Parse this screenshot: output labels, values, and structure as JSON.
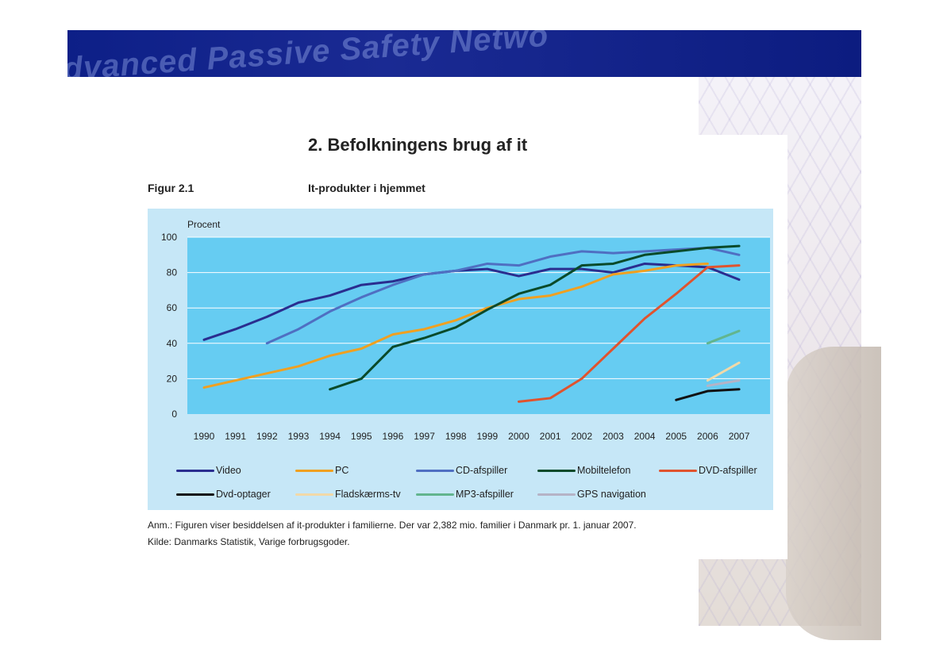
{
  "banner": {
    "watermark": "dvanced Passive Safety Netwo"
  },
  "page": {
    "heading": "2. Befolkningens brug af it",
    "figure_label": "Figur 2.1",
    "figure_title": "It-produkter i hjemmet",
    "note": "Anm.: Figuren viser besiddelsen af it-produkter i familierne. Der var 2,382 mio. familier i Danmark pr. 1. januar 2007.",
    "source": "Kilde: Danmarks Statistik, Varige forbrugsgoder."
  },
  "chart_data": {
    "type": "line",
    "title": "It-produkter i hjemmet",
    "ylabel": "Procent",
    "xlabel": "",
    "ylim": [
      0,
      100
    ],
    "yticks": [
      0,
      20,
      40,
      60,
      80,
      100
    ],
    "grid": true,
    "legend_position": "bottom",
    "x": [
      "1990",
      "1991",
      "1992",
      "1993",
      "1994",
      "1995",
      "1996",
      "1997",
      "1998",
      "1999",
      "2000",
      "2001",
      "2002",
      "2003",
      "2004",
      "2005",
      "2006",
      "2007"
    ],
    "series": [
      {
        "name": "Video",
        "color": "#2a2d8f",
        "values": [
          42,
          48,
          55,
          63,
          67,
          73,
          75,
          79,
          81,
          82,
          78,
          82,
          82,
          80,
          85,
          84,
          83,
          76
        ]
      },
      {
        "name": "PC",
        "color": "#f0a020",
        "values": [
          15,
          19,
          23,
          27,
          33,
          37,
          45,
          48,
          53,
          60,
          65,
          67,
          72,
          79,
          81,
          84,
          85,
          null
        ]
      },
      {
        "name": "CD-afspiller",
        "color": "#4f6fc2",
        "values": [
          null,
          null,
          40,
          48,
          58,
          66,
          73,
          79,
          81,
          85,
          84,
          89,
          92,
          91,
          92,
          93,
          94,
          90
        ]
      },
      {
        "name": "Mobiltelefon",
        "color": "#0a4a2a",
        "values": [
          null,
          null,
          null,
          null,
          14,
          20,
          38,
          43,
          49,
          59,
          68,
          73,
          84,
          85,
          90,
          92,
          94,
          95
        ]
      },
      {
        "name": "DVD-afspiller",
        "color": "#e0532e",
        "values": [
          null,
          null,
          null,
          null,
          null,
          null,
          null,
          null,
          null,
          null,
          7,
          9,
          20,
          37,
          54,
          68,
          83,
          84
        ]
      },
      {
        "name": "Dvd-optager",
        "color": "#111111",
        "values": [
          null,
          null,
          null,
          null,
          null,
          null,
          null,
          null,
          null,
          null,
          null,
          null,
          null,
          null,
          null,
          8,
          13,
          14
        ]
      },
      {
        "name": "Fladskærms-tv",
        "color": "#f1d9a8",
        "values": [
          null,
          null,
          null,
          null,
          null,
          null,
          null,
          null,
          null,
          null,
          null,
          null,
          null,
          null,
          null,
          null,
          19,
          29
        ]
      },
      {
        "name": "MP3-afspiller",
        "color": "#62b58e",
        "values": [
          null,
          null,
          null,
          null,
          null,
          null,
          null,
          null,
          null,
          null,
          null,
          null,
          null,
          null,
          null,
          null,
          40,
          47
        ]
      },
      {
        "name": "GPS navigation",
        "color": "#b5b3c6",
        "values": [
          null,
          null,
          null,
          null,
          null,
          null,
          null,
          null,
          null,
          null,
          null,
          null,
          null,
          null,
          null,
          null,
          16,
          19
        ]
      }
    ]
  }
}
